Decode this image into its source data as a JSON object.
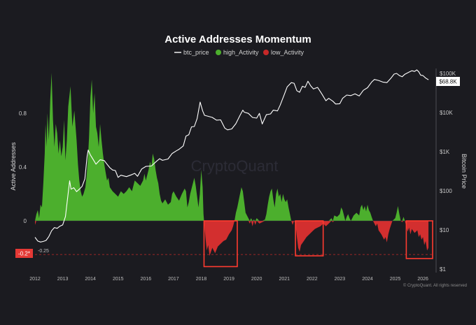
{
  "chart_data": {
    "type": "area",
    "title": "Active Addresses Momentum",
    "legend": [
      {
        "name": "btc_price",
        "color": "#ffffff",
        "style": "line"
      },
      {
        "name": "high_Activity",
        "color": "#4caf2d",
        "style": "dot"
      },
      {
        "name": "low_Activity",
        "color": "#c62828",
        "style": "dot"
      }
    ],
    "legend_position": "top-center",
    "ylabel_left": "Active Addresses",
    "ylabel_right": "Bitcoin Price",
    "left_axis": {
      "range": [
        -0.35,
        1.1
      ],
      "ticks": [
        {
          "v": 0.8,
          "label": "0.8"
        },
        {
          "v": 0.4,
          "label": "0.4"
        },
        {
          "v": 0,
          "label": "0"
        }
      ]
    },
    "right_axis": {
      "scale": "log",
      "range": [
        1,
        100000
      ],
      "ticks": [
        {
          "v": 100000,
          "label": "$100K"
        },
        {
          "v": 10000,
          "label": "$10K"
        },
        {
          "v": 1000,
          "label": "$1K"
        },
        {
          "v": 100,
          "label": "$100"
        },
        {
          "v": 10,
          "label": "$10"
        },
        {
          "v": 1,
          "label": "$1"
        }
      ]
    },
    "x_axis": {
      "range": [
        2012,
        2026.4
      ],
      "ticks": [
        "2012",
        "2013",
        "2014",
        "2015",
        "2016",
        "2017",
        "2018",
        "2019",
        "2020",
        "2021",
        "2022",
        "2023",
        "2024",
        "2025",
        "2026"
      ]
    },
    "threshold_line": {
      "value": -0.25,
      "label": "-0.25",
      "color": "#c62828"
    },
    "current_value_badge": {
      "value": -0.2,
      "label": "-0.2*",
      "color": "#e53935"
    },
    "price_badge": {
      "label": "$68.8K"
    },
    "grid": false,
    "highlight_boxes": [
      {
        "x0": 2018.1,
        "x1": 2019.3,
        "y0": -0.34,
        "y1": 0.0
      },
      {
        "x0": 2021.4,
        "x1": 2022.4,
        "y0": -0.26,
        "y1": 0.0
      },
      {
        "x0": 2025.4,
        "x1": 2026.35,
        "y0": -0.28,
        "y1": 0.0
      }
    ],
    "momentum": [
      [
        2012.0,
        -0.03
      ],
      [
        2012.05,
        0.05
      ],
      [
        2012.1,
        0.08
      ],
      [
        2012.15,
        0.02
      ],
      [
        2012.2,
        0.12
      ],
      [
        2012.25,
        0.1
      ],
      [
        2012.3,
        0.28
      ],
      [
        2012.35,
        0.5
      ],
      [
        2012.38,
        0.72
      ],
      [
        2012.42,
        0.55
      ],
      [
        2012.45,
        0.8
      ],
      [
        2012.5,
        0.6
      ],
      [
        2012.55,
        0.9
      ],
      [
        2012.6,
        1.1
      ],
      [
        2012.65,
        0.75
      ],
      [
        2012.7,
        0.55
      ],
      [
        2012.75,
        0.72
      ],
      [
        2012.8,
        0.65
      ],
      [
        2012.85,
        0.5
      ],
      [
        2012.9,
        0.6
      ],
      [
        2012.95,
        0.48
      ],
      [
        2013.0,
        0.55
      ],
      [
        2013.05,
        0.75
      ],
      [
        2013.1,
        0.45
      ],
      [
        2013.15,
        0.6
      ],
      [
        2013.2,
        0.85
      ],
      [
        2013.28,
        1.0
      ],
      [
        2013.35,
        0.7
      ],
      [
        2013.42,
        0.82
      ],
      [
        2013.5,
        0.6
      ],
      [
        2013.55,
        0.42
      ],
      [
        2013.6,
        0.3
      ],
      [
        2013.65,
        0.22
      ],
      [
        2013.7,
        0.18
      ],
      [
        2013.75,
        0.2
      ],
      [
        2013.82,
        0.25
      ],
      [
        2013.87,
        0.35
      ],
      [
        2013.92,
        0.5
      ],
      [
        2013.95,
        0.62
      ],
      [
        2014.0,
        0.92
      ],
      [
        2014.05,
        1.05
      ],
      [
        2014.1,
        0.8
      ],
      [
        2014.15,
        0.95
      ],
      [
        2014.2,
        0.7
      ],
      [
        2014.25,
        0.65
      ],
      [
        2014.3,
        0.55
      ],
      [
        2014.35,
        0.72
      ],
      [
        2014.4,
        0.6
      ],
      [
        2014.45,
        0.5
      ],
      [
        2014.5,
        0.42
      ],
      [
        2014.55,
        0.36
      ],
      [
        2014.6,
        0.3
      ],
      [
        2014.65,
        0.32
      ],
      [
        2014.7,
        0.25
      ],
      [
        2014.8,
        0.22
      ],
      [
        2014.9,
        0.2
      ],
      [
        2015.0,
        0.18
      ],
      [
        2015.1,
        0.22
      ],
      [
        2015.2,
        0.2
      ],
      [
        2015.3,
        0.22
      ],
      [
        2015.4,
        0.25
      ],
      [
        2015.5,
        0.22
      ],
      [
        2015.6,
        0.3
      ],
      [
        2015.7,
        0.28
      ],
      [
        2015.8,
        0.26
      ],
      [
        2015.9,
        0.3
      ],
      [
        2015.95,
        0.35
      ],
      [
        2016.0,
        0.3
      ],
      [
        2016.05,
        0.34
      ],
      [
        2016.1,
        0.38
      ],
      [
        2016.15,
        0.44
      ],
      [
        2016.2,
        0.4
      ],
      [
        2016.25,
        0.5
      ],
      [
        2016.3,
        0.46
      ],
      [
        2016.35,
        0.38
      ],
      [
        2016.4,
        0.32
      ],
      [
        2016.45,
        0.28
      ],
      [
        2016.5,
        0.2
      ],
      [
        2016.55,
        0.15
      ],
      [
        2016.6,
        0.13
      ],
      [
        2016.7,
        0.16
      ],
      [
        2016.8,
        0.12
      ],
      [
        2016.9,
        0.14
      ],
      [
        2016.95,
        0.2
      ],
      [
        2017.0,
        0.22
      ],
      [
        2017.05,
        0.2
      ],
      [
        2017.1,
        0.18
      ],
      [
        2017.2,
        0.15
      ],
      [
        2017.3,
        0.2
      ],
      [
        2017.4,
        0.24
      ],
      [
        2017.45,
        0.22
      ],
      [
        2017.5,
        0.1
      ],
      [
        2017.55,
        0.14
      ],
      [
        2017.6,
        0.2
      ],
      [
        2017.7,
        0.28
      ],
      [
        2017.75,
        0.32
      ],
      [
        2017.8,
        0.26
      ],
      [
        2017.85,
        0.18
      ],
      [
        2017.9,
        0.1
      ],
      [
        2017.95,
        0.2
      ],
      [
        2018.0,
        0.38
      ],
      [
        2018.05,
        0.25
      ],
      [
        2018.08,
        0.05
      ],
      [
        2018.1,
        0.0
      ],
      [
        2018.15,
        -0.12
      ],
      [
        2018.2,
        -0.22
      ],
      [
        2018.25,
        -0.18
      ],
      [
        2018.3,
        -0.26
      ],
      [
        2018.4,
        -0.2
      ],
      [
        2018.5,
        -0.24
      ],
      [
        2018.6,
        -0.19
      ],
      [
        2018.7,
        -0.17
      ],
      [
        2018.8,
        -0.15
      ],
      [
        2018.9,
        -0.14
      ],
      [
        2019.0,
        -0.1
      ],
      [
        2019.1,
        -0.07
      ],
      [
        2019.15,
        -0.04
      ],
      [
        2019.2,
        0.0
      ],
      [
        2019.25,
        0.06
      ],
      [
        2019.3,
        0.1
      ],
      [
        2019.38,
        0.18
      ],
      [
        2019.45,
        0.25
      ],
      [
        2019.5,
        0.22
      ],
      [
        2019.55,
        0.14
      ],
      [
        2019.6,
        0.06
      ],
      [
        2019.7,
        0.02
      ],
      [
        2019.75,
        -0.02
      ],
      [
        2019.8,
        0.02
      ],
      [
        2019.85,
        -0.04
      ],
      [
        2019.9,
        0.01
      ],
      [
        2019.95,
        -0.03
      ],
      [
        2020.0,
        0.02
      ],
      [
        2020.1,
        -0.02
      ],
      [
        2020.2,
        -0.01
      ],
      [
        2020.3,
        0.01
      ],
      [
        2020.35,
        0.05
      ],
      [
        2020.4,
        0.12
      ],
      [
        2020.45,
        0.18
      ],
      [
        2020.5,
        0.22
      ],
      [
        2020.55,
        0.24
      ],
      [
        2020.6,
        0.16
      ],
      [
        2020.65,
        0.1
      ],
      [
        2020.7,
        0.2
      ],
      [
        2020.75,
        0.24
      ],
      [
        2020.8,
        0.18
      ],
      [
        2020.85,
        0.2
      ],
      [
        2020.9,
        0.14
      ],
      [
        2020.95,
        0.2
      ],
      [
        2021.0,
        0.16
      ],
      [
        2021.05,
        0.14
      ],
      [
        2021.1,
        0.16
      ],
      [
        2021.15,
        0.1
      ],
      [
        2021.2,
        0.05
      ],
      [
        2021.25,
        0.0
      ],
      [
        2021.3,
        -0.03
      ],
      [
        2021.35,
        0.0
      ],
      [
        2021.4,
        -0.02
      ],
      [
        2021.45,
        -0.12
      ],
      [
        2021.5,
        -0.2
      ],
      [
        2021.55,
        -0.23
      ],
      [
        2021.6,
        -0.18
      ],
      [
        2021.7,
        -0.15
      ],
      [
        2021.8,
        -0.12
      ],
      [
        2021.9,
        -0.1
      ],
      [
        2022.0,
        -0.08
      ],
      [
        2022.1,
        -0.06
      ],
      [
        2022.2,
        -0.05
      ],
      [
        2022.3,
        -0.04
      ],
      [
        2022.4,
        -0.02
      ],
      [
        2022.5,
        -0.04
      ],
      [
        2022.6,
        -0.02
      ],
      [
        2022.7,
        0.02
      ],
      [
        2022.75,
        -0.01
      ],
      [
        2022.8,
        0.04
      ],
      [
        2022.9,
        0.03
      ],
      [
        2023.0,
        0.05
      ],
      [
        2023.05,
        0.1
      ],
      [
        2023.1,
        0.08
      ],
      [
        2023.15,
        0.04
      ],
      [
        2023.2,
        0.0
      ],
      [
        2023.25,
        0.03
      ],
      [
        2023.3,
        0.05
      ],
      [
        2023.35,
        0.02
      ],
      [
        2023.4,
        0.0
      ],
      [
        2023.5,
        0.04
      ],
      [
        2023.6,
        0.06
      ],
      [
        2023.7,
        0.04
      ],
      [
        2023.75,
        0.1
      ],
      [
        2023.8,
        0.12
      ],
      [
        2023.85,
        0.08
      ],
      [
        2023.9,
        0.11
      ],
      [
        2023.95,
        0.07
      ],
      [
        2024.0,
        0.12
      ],
      [
        2024.05,
        0.08
      ],
      [
        2024.1,
        0.06
      ],
      [
        2024.15,
        0.03
      ],
      [
        2024.2,
        0.0
      ],
      [
        2024.25,
        -0.02
      ],
      [
        2024.3,
        -0.04
      ],
      [
        2024.35,
        -0.02
      ],
      [
        2024.4,
        -0.07
      ],
      [
        2024.5,
        -0.1
      ],
      [
        2024.6,
        -0.14
      ],
      [
        2024.65,
        -0.12
      ],
      [
        2024.7,
        -0.16
      ],
      [
        2024.75,
        -0.1
      ],
      [
        2024.8,
        -0.06
      ],
      [
        2024.85,
        -0.03
      ],
      [
        2024.9,
        0.0
      ],
      [
        2025.0,
        0.02
      ],
      [
        2025.05,
        0.06
      ],
      [
        2025.1,
        0.11
      ],
      [
        2025.15,
        0.05
      ],
      [
        2025.2,
        0.0
      ],
      [
        2025.25,
        -0.01
      ],
      [
        2025.3,
        0.03
      ],
      [
        2025.35,
        0.0
      ],
      [
        2025.4,
        -0.04
      ],
      [
        2025.45,
        -0.08
      ],
      [
        2025.5,
        -0.05
      ],
      [
        2025.55,
        -0.1
      ],
      [
        2025.6,
        -0.06
      ],
      [
        2025.7,
        -0.09
      ],
      [
        2025.8,
        -0.07
      ],
      [
        2025.85,
        -0.12
      ],
      [
        2025.9,
        -0.1
      ],
      [
        2025.95,
        -0.14
      ],
      [
        2026.0,
        -0.12
      ],
      [
        2026.05,
        -0.18
      ],
      [
        2026.1,
        -0.15
      ],
      [
        2026.15,
        -0.22
      ],
      [
        2026.2,
        -0.2
      ]
    ],
    "btc_price": [
      [
        2012.0,
        6.5
      ],
      [
        2012.1,
        5.2
      ],
      [
        2012.2,
        4.9
      ],
      [
        2012.3,
        5.1
      ],
      [
        2012.4,
        5.4
      ],
      [
        2012.5,
        6.8
      ],
      [
        2012.6,
        9.5
      ],
      [
        2012.7,
        11.5
      ],
      [
        2012.8,
        11
      ],
      [
        2012.9,
        12.5
      ],
      [
        2013.0,
        13.5
      ],
      [
        2013.1,
        22
      ],
      [
        2013.2,
        90
      ],
      [
        2013.25,
        180
      ],
      [
        2013.3,
        110
      ],
      [
        2013.4,
        120
      ],
      [
        2013.5,
        95
      ],
      [
        2013.6,
        110
      ],
      [
        2013.7,
        130
      ],
      [
        2013.8,
        200
      ],
      [
        2013.88,
        750
      ],
      [
        2013.92,
        1100
      ],
      [
        2014.0,
        820
      ],
      [
        2014.1,
        630
      ],
      [
        2014.2,
        480
      ],
      [
        2014.35,
        620
      ],
      [
        2014.5,
        590
      ],
      [
        2014.6,
        480
      ],
      [
        2014.7,
        390
      ],
      [
        2014.8,
        340
      ],
      [
        2014.9,
        330
      ],
      [
        2015.0,
        220
      ],
      [
        2015.1,
        250
      ],
      [
        2015.3,
        230
      ],
      [
        2015.5,
        260
      ],
      [
        2015.6,
        280
      ],
      [
        2015.7,
        235
      ],
      [
        2015.85,
        360
      ],
      [
        2016.0,
        420
      ],
      [
        2016.2,
        430
      ],
      [
        2016.4,
        580
      ],
      [
        2016.5,
        660
      ],
      [
        2016.6,
        600
      ],
      [
        2016.8,
        650
      ],
      [
        2016.95,
        900
      ],
      [
        2017.1,
        1050
      ],
      [
        2017.2,
        1150
      ],
      [
        2017.35,
        1400
      ],
      [
        2017.45,
        2500
      ],
      [
        2017.55,
        2700
      ],
      [
        2017.65,
        4300
      ],
      [
        2017.75,
        4400
      ],
      [
        2017.85,
        7000
      ],
      [
        2017.96,
        18500
      ],
      [
        2018.05,
        11000
      ],
      [
        2018.12,
        8500
      ],
      [
        2018.25,
        8000
      ],
      [
        2018.4,
        7500
      ],
      [
        2018.55,
        6400
      ],
      [
        2018.7,
        6500
      ],
      [
        2018.85,
        4000
      ],
      [
        2018.95,
        3600
      ],
      [
        2019.1,
        3800
      ],
      [
        2019.25,
        5200
      ],
      [
        2019.4,
        8500
      ],
      [
        2019.5,
        11500
      ],
      [
        2019.55,
        10200
      ],
      [
        2019.7,
        9500
      ],
      [
        2019.85,
        7500
      ],
      [
        2020.0,
        7200
      ],
      [
        2020.1,
        9500
      ],
      [
        2020.2,
        5100
      ],
      [
        2020.35,
        8800
      ],
      [
        2020.5,
        9200
      ],
      [
        2020.6,
        11500
      ],
      [
        2020.75,
        11000
      ],
      [
        2020.85,
        15500
      ],
      [
        2021.0,
        29000
      ],
      [
        2021.1,
        45000
      ],
      [
        2021.25,
        58000
      ],
      [
        2021.35,
        56000
      ],
      [
        2021.45,
        36000
      ],
      [
        2021.55,
        33000
      ],
      [
        2021.65,
        47000
      ],
      [
        2021.75,
        44000
      ],
      [
        2021.85,
        63000
      ],
      [
        2021.95,
        48000
      ],
      [
        2022.05,
        40000
      ],
      [
        2022.2,
        44000
      ],
      [
        2022.35,
        30000
      ],
      [
        2022.5,
        20000
      ],
      [
        2022.6,
        23000
      ],
      [
        2022.75,
        19500
      ],
      [
        2022.85,
        16500
      ],
      [
        2023.0,
        16800
      ],
      [
        2023.1,
        23000
      ],
      [
        2023.25,
        28000
      ],
      [
        2023.4,
        27000
      ],
      [
        2023.55,
        30000
      ],
      [
        2023.7,
        26500
      ],
      [
        2023.85,
        37000
      ],
      [
        2024.0,
        43000
      ],
      [
        2024.15,
        60000
      ],
      [
        2024.25,
        70000
      ],
      [
        2024.4,
        66000
      ],
      [
        2024.55,
        60000
      ],
      [
        2024.7,
        58000
      ],
      [
        2024.85,
        76000
      ],
      [
        2024.96,
        96000
      ],
      [
        2025.05,
        100000
      ],
      [
        2025.15,
        88000
      ],
      [
        2025.25,
        82000
      ],
      [
        2025.35,
        95000
      ],
      [
        2025.5,
        108000
      ],
      [
        2025.6,
        117000
      ],
      [
        2025.7,
        112000
      ],
      [
        2025.78,
        123000
      ],
      [
        2025.85,
        110000
      ],
      [
        2025.92,
        90000
      ],
      [
        2026.0,
        88000
      ],
      [
        2026.1,
        76000
      ],
      [
        2026.2,
        68800
      ]
    ]
  },
  "credit": "© CryptoQuant. All rights reserved",
  "watermark": "CryptoQuant"
}
